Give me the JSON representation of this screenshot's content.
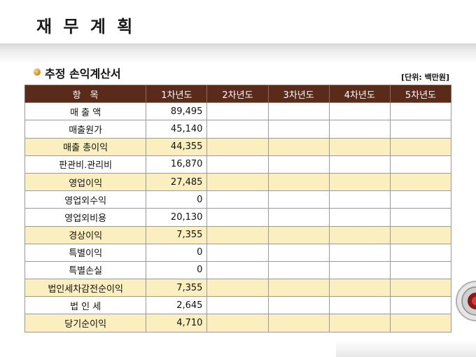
{
  "page": {
    "title": "재 무 계 획"
  },
  "section": {
    "title": "추정 손익계산서",
    "unit": "[단위: 백만원]"
  },
  "table": {
    "headers": [
      "항　목",
      "1차년도",
      "2차년도",
      "3차년도",
      "4차년도",
      "5차년도"
    ],
    "rows": [
      {
        "item": "매 출 액",
        "y1": "89,495",
        "highlight": false
      },
      {
        "item": "매출원가",
        "y1": "45,140",
        "highlight": false
      },
      {
        "item": "매출 총이익",
        "y1": "44,355",
        "highlight": true
      },
      {
        "item": "판관비.관리비",
        "y1": "16,870",
        "highlight": false
      },
      {
        "item": "영업이익",
        "y1": "27,485",
        "highlight": true
      },
      {
        "item": "영업외수익",
        "y1": "0",
        "highlight": false
      },
      {
        "item": "영업외비용",
        "y1": "20,130",
        "highlight": false
      },
      {
        "item": "경상이익",
        "y1": "7,355",
        "highlight": true
      },
      {
        "item": "특별이익",
        "y1": "0",
        "highlight": false
      },
      {
        "item": "특별손실",
        "y1": "0",
        "highlight": false
      },
      {
        "item": "법인세차감전순이익",
        "y1": "7,355",
        "highlight": true
      },
      {
        "item": "법 인 세",
        "y1": "2,645",
        "highlight": false
      },
      {
        "item": "당기순이익",
        "y1": "4,710",
        "highlight": true
      }
    ]
  },
  "colors": {
    "header_bg": "#5a2a1a",
    "highlight_row": "#fbefc0",
    "bullet": "#d39a2e"
  },
  "icons": [
    "bullet-orb-icon",
    "corner-emblem-icon"
  ]
}
